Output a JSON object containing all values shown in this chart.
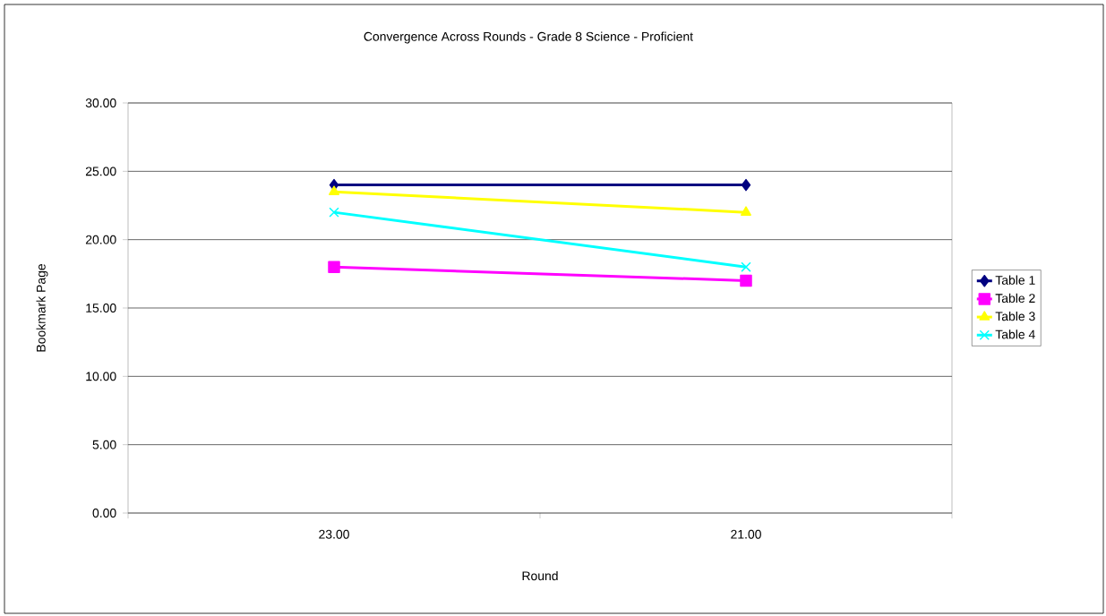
{
  "chart_data": {
    "type": "line",
    "title": "Convergence Across Rounds - Grade 8 Science - Proficient",
    "xlabel": "Round",
    "ylabel": "Bookmark Page",
    "categories": [
      "23.00",
      "21.00"
    ],
    "series": [
      {
        "name": "Table 1",
        "color": "#000080",
        "marker": "diamond",
        "values": [
          24,
          24
        ]
      },
      {
        "name": "Table 2",
        "color": "#ff00ff",
        "marker": "square",
        "values": [
          18,
          17
        ]
      },
      {
        "name": "Table 3",
        "color": "#ffff00",
        "marker": "triangle",
        "values": [
          23.5,
          22
        ]
      },
      {
        "name": "Table 4",
        "color": "#00ffff",
        "marker": "cross",
        "values": [
          22,
          18
        ]
      }
    ],
    "ylim": [
      0,
      30
    ],
    "yticks": [
      {
        "value": 0,
        "label": "0.00"
      },
      {
        "value": 5,
        "label": "5.00"
      },
      {
        "value": 10,
        "label": "10.00"
      },
      {
        "value": 15,
        "label": "15.00"
      },
      {
        "value": 20,
        "label": "20.00"
      },
      {
        "value": 25,
        "label": "25.00"
      },
      {
        "value": 30,
        "label": "30.00"
      }
    ],
    "grid": "y",
    "legend": "right",
    "line_style": "solid"
  }
}
